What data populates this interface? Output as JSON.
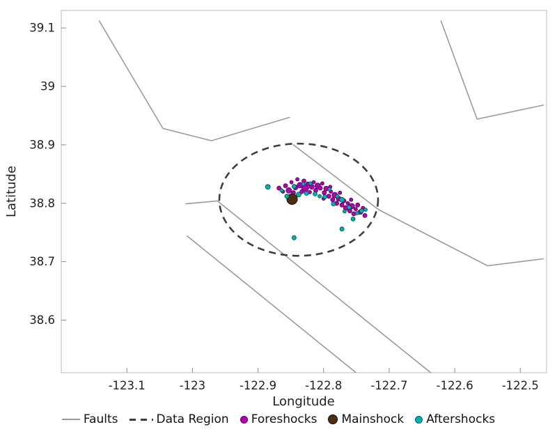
{
  "chart_data": {
    "type": "scatter",
    "title": "",
    "xlabel": "Longitude",
    "ylabel": "Latitude",
    "xlim": [
      -123.2,
      -122.46
    ],
    "ylim": [
      38.51,
      39.13
    ],
    "xticks": [
      -123.1,
      -123.0,
      -122.9,
      -122.8,
      -122.7,
      -122.6,
      -122.5
    ],
    "xtick_labels": [
      "-123.1",
      "-123",
      "-122.9",
      "-122.8",
      "-122.7",
      "-122.6",
      "-122.5"
    ],
    "yticks": [
      38.6,
      38.7,
      38.8,
      38.9,
      39.0,
      39.1
    ],
    "ytick_labels": [
      "38.6",
      "38.7",
      "38.8",
      "38.9",
      "39",
      "39.1"
    ],
    "grid": false,
    "legend_position": "bottom",
    "colors": {
      "fault": "#9a9a9a",
      "data_region": "#3d3d3d",
      "foreshock": "#b400b4",
      "mainshock": "#4d2e0e",
      "aftershock": "#00b1b1",
      "frame": "#c6c6c6",
      "text": "#1f1f1f"
    },
    "faults": [
      [
        [
          -123.142,
          39.112
        ],
        [
          -123.045,
          38.928
        ],
        [
          -122.971,
          38.907
        ],
        [
          -122.852,
          38.947
        ]
      ],
      [
        [
          -123.01,
          38.799
        ],
        [
          -122.962,
          38.804
        ],
        [
          -122.631,
          38.505
        ]
      ],
      [
        [
          -123.008,
          38.744
        ],
        [
          -122.745,
          38.505
        ]
      ],
      [
        [
          -122.846,
          38.9
        ],
        [
          -122.716,
          38.789
        ],
        [
          -122.55,
          38.693
        ],
        [
          -122.465,
          38.705
        ]
      ],
      [
        [
          -122.621,
          39.112
        ],
        [
          -122.566,
          38.944
        ],
        [
          -122.465,
          38.968
        ]
      ]
    ],
    "data_region": {
      "center": [
        -122.838,
        38.806
      ],
      "rx": 0.121,
      "ry": 0.096
    },
    "series": [
      {
        "name": "Foreshocks",
        "color": "#b400b4",
        "edge": "#470047",
        "edge_width": 0.8,
        "points": [
          [
            -122.868,
            38.826,
            3
          ],
          [
            -122.862,
            38.82,
            2.5
          ],
          [
            -122.858,
            38.83,
            3
          ],
          [
            -122.853,
            38.822,
            4
          ],
          [
            -122.849,
            38.836,
            2.5
          ],
          [
            -122.846,
            38.818,
            3
          ],
          [
            -122.843,
            38.827,
            3.5
          ],
          [
            -122.84,
            38.841,
            2.5
          ],
          [
            -122.836,
            38.831,
            4
          ],
          [
            -122.833,
            38.82,
            3
          ],
          [
            -122.83,
            38.838,
            3
          ],
          [
            -122.828,
            38.826,
            5
          ],
          [
            -122.824,
            38.833,
            3
          ],
          [
            -122.821,
            38.819,
            2.5
          ],
          [
            -122.818,
            38.828,
            3.5
          ],
          [
            -122.815,
            38.836,
            2.5
          ],
          [
            -122.812,
            38.822,
            3
          ],
          [
            -122.809,
            38.83,
            4
          ],
          [
            -122.805,
            38.826,
            3
          ],
          [
            -122.802,
            38.834,
            2.5
          ],
          [
            -122.8,
            38.808,
            2.5
          ],
          [
            -122.799,
            38.818,
            3
          ],
          [
            -122.796,
            38.825,
            3.5
          ],
          [
            -122.792,
            38.812,
            3
          ],
          [
            -122.79,
            38.828,
            2.5
          ],
          [
            -122.789,
            38.82,
            2.5
          ],
          [
            -122.786,
            38.806,
            3
          ],
          [
            -122.783,
            38.814,
            4
          ],
          [
            -122.78,
            38.8,
            3
          ],
          [
            -122.777,
            38.808,
            3.5
          ],
          [
            -122.775,
            38.818,
            2.5
          ],
          [
            -122.772,
            38.797,
            3
          ],
          [
            -122.769,
            38.804,
            3
          ],
          [
            -122.766,
            38.792,
            3.5
          ],
          [
            -122.763,
            38.8,
            2.5
          ],
          [
            -122.76,
            38.787,
            3
          ],
          [
            -122.757,
            38.795,
            4
          ],
          [
            -122.754,
            38.782,
            3
          ],
          [
            -122.751,
            38.79,
            2.5
          ],
          [
            -122.748,
            38.797,
            3
          ],
          [
            -122.744,
            38.785,
            3.5
          ],
          [
            -122.74,
            38.792,
            2.5
          ],
          [
            -122.737,
            38.779,
            3
          ],
          [
            -122.758,
            38.806,
            2.5
          ]
        ]
      },
      {
        "name": "Mainshock",
        "color": "#4d2e0e",
        "edge": "#1a1a1a",
        "edge_width": 1.2,
        "points": [
          [
            -122.848,
            38.807,
            7.5
          ]
        ]
      },
      {
        "name": "Aftershocks",
        "color": "#00b1b1",
        "edge": "#004a4c",
        "edge_width": 0.8,
        "points": [
          [
            -122.885,
            38.828,
            3.5
          ],
          [
            -122.864,
            38.822,
            2.5
          ],
          [
            -122.856,
            38.812,
            3
          ],
          [
            -122.845,
            38.829,
            3
          ],
          [
            -122.838,
            38.815,
            3.5
          ],
          [
            -122.831,
            38.833,
            2.5
          ],
          [
            -122.826,
            38.817,
            3
          ],
          [
            -122.82,
            38.834,
            2.5
          ],
          [
            -122.813,
            38.816,
            3
          ],
          [
            -122.806,
            38.812,
            2.5
          ],
          [
            -122.798,
            38.811,
            3
          ],
          [
            -122.791,
            38.824,
            2.5
          ],
          [
            -122.785,
            38.799,
            3
          ],
          [
            -122.779,
            38.812,
            2.5
          ],
          [
            -122.772,
            38.806,
            3.5
          ],
          [
            -122.768,
            38.786,
            2.5
          ],
          [
            -122.761,
            38.793,
            3
          ],
          [
            -122.755,
            38.773,
            3
          ],
          [
            -122.749,
            38.783,
            2.5
          ],
          [
            -122.742,
            38.787,
            3
          ],
          [
            -122.845,
            38.741,
            3
          ],
          [
            -122.772,
            38.756,
            3
          ],
          [
            -122.736,
            38.789,
            2.5
          ]
        ]
      }
    ],
    "legend": [
      {
        "label": "Faults",
        "swatch": "line",
        "color": "#9a9a9a"
      },
      {
        "label": "Data Region",
        "swatch": "dashed-line",
        "color": "#3d3d3d"
      },
      {
        "label": "Foreshocks",
        "swatch": "dot",
        "color": "#b400b4"
      },
      {
        "label": "Mainshock",
        "swatch": "dot",
        "color": "#4d2e0e"
      },
      {
        "label": "Aftershocks",
        "swatch": "dot",
        "color": "#00b1b1"
      }
    ]
  }
}
